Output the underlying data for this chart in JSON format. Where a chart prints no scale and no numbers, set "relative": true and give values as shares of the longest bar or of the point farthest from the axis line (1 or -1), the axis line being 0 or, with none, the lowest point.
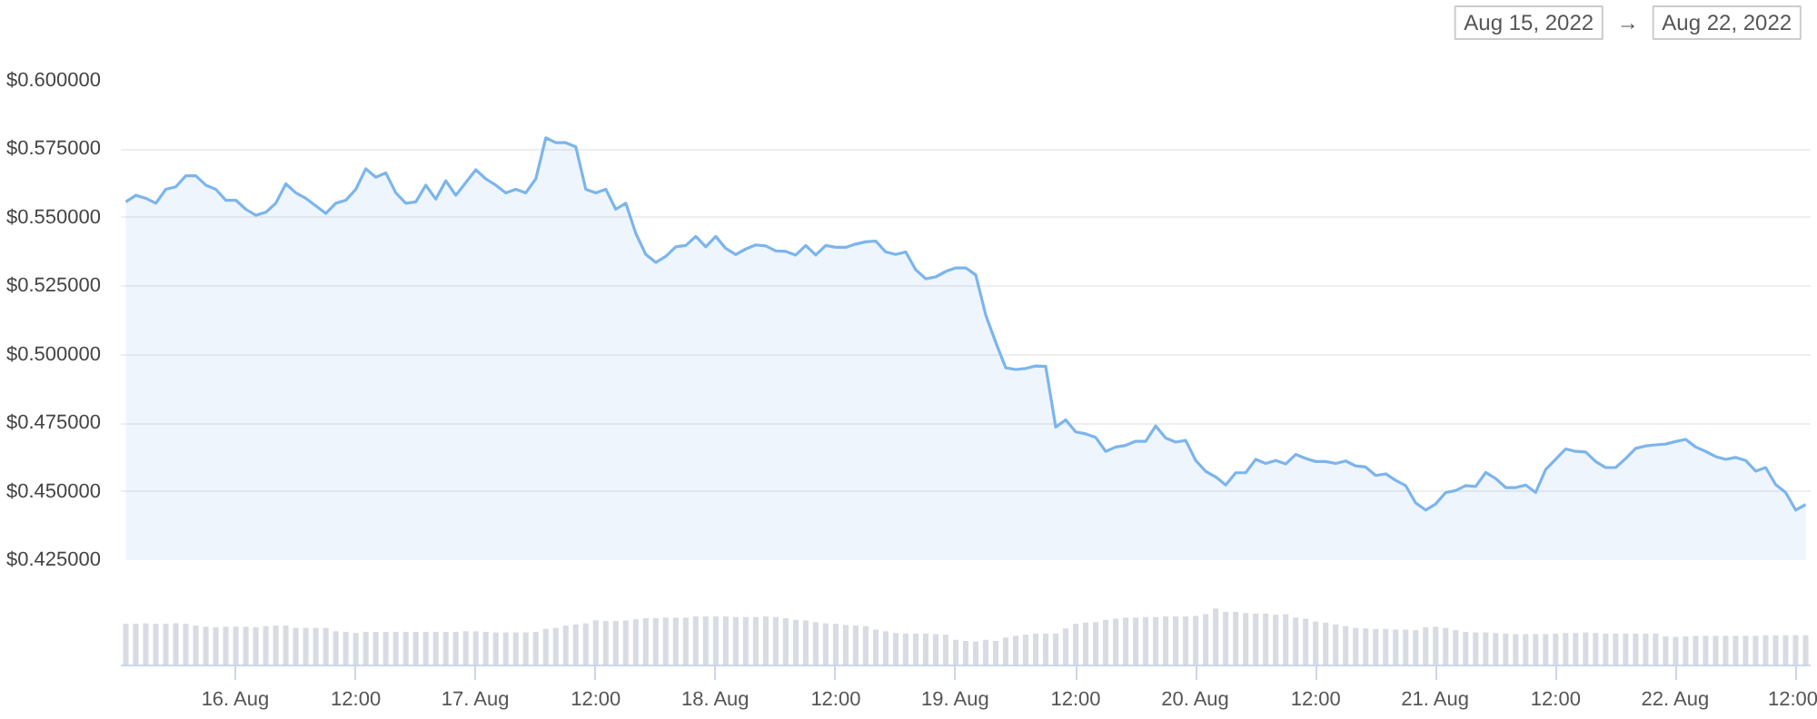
{
  "chart_data": [
    {
      "type": "area",
      "annotations": [
        "Aug 15, 2022",
        "→",
        "Aug 22, 2022"
      ],
      "tick_labels": "y",
      "grid": "y",
      "xlim": [
        "2022-08-15T12:30",
        "2022-08-22T13:30"
      ],
      "ylim": [
        0.425,
        0.6
      ],
      "yticks": [
        {
          "value": 0.425,
          "label": "$0.425000"
        },
        {
          "value": 0.45,
          "label": "$0.450000"
        },
        {
          "value": 0.475,
          "label": "$0.475000"
        },
        {
          "value": 0.5,
          "label": "$0.500000"
        },
        {
          "value": 0.525,
          "label": "$0.525000"
        },
        {
          "value": 0.55,
          "label": "$0.550000"
        },
        {
          "value": 0.575,
          "label": "$0.575000"
        },
        {
          "value": 0.6,
          "label": "$0.600000"
        }
      ],
      "series": [
        {
          "color": "#7cb5ec",
          "x": [
            "2022-08-15T13:00",
            "2022-08-15T14:00",
            "2022-08-15T15:00",
            "2022-08-15T16:00",
            "2022-08-15T17:00",
            "2022-08-15T18:00",
            "2022-08-15T19:00",
            "2022-08-15T20:00",
            "2022-08-15T21:00",
            "2022-08-15T22:00",
            "2022-08-15T23:00",
            "2022-08-16T00:00",
            "2022-08-16T01:00",
            "2022-08-16T02:00",
            "2022-08-16T03:00",
            "2022-08-16T04:00",
            "2022-08-16T05:00",
            "2022-08-16T06:00",
            "2022-08-16T07:00",
            "2022-08-16T09:00",
            "2022-08-16T10:00",
            "2022-08-16T11:00",
            "2022-08-16T12:00",
            "2022-08-16T13:00",
            "2022-08-16T14:00",
            "2022-08-16T15:00",
            "2022-08-16T16:00",
            "2022-08-16T17:00",
            "2022-08-16T18:00",
            "2022-08-16T19:00",
            "2022-08-16T20:00",
            "2022-08-16T21:00",
            "2022-08-16T22:00",
            "2022-08-17T00:00",
            "2022-08-17T01:00",
            "2022-08-17T02:00",
            "2022-08-17T03:00",
            "2022-08-17T04:00",
            "2022-08-17T05:00",
            "2022-08-17T06:00",
            "2022-08-17T07:00",
            "2022-08-17T08:00",
            "2022-08-17T09:00",
            "2022-08-17T10:00",
            "2022-08-17T11:00",
            "2022-08-17T12:00",
            "2022-08-17T13:00",
            "2022-08-17T14:00",
            "2022-08-17T15:00",
            "2022-08-17T16:00",
            "2022-08-17T17:00",
            "2022-08-17T18:00",
            "2022-08-17T19:00",
            "2022-08-17T20:00",
            "2022-08-17T21:00",
            "2022-08-17T22:00",
            "2022-08-17T23:00",
            "2022-08-18T00:00",
            "2022-08-18T01:00",
            "2022-08-18T02:00",
            "2022-08-18T03:00",
            "2022-08-18T04:00",
            "2022-08-18T05:00",
            "2022-08-18T06:00",
            "2022-08-18T07:00",
            "2022-08-18T08:00",
            "2022-08-18T09:00",
            "2022-08-18T10:00",
            "2022-08-18T11:00",
            "2022-08-18T12:00",
            "2022-08-18T13:00",
            "2022-08-18T14:00",
            "2022-08-18T15:00",
            "2022-08-18T16:00",
            "2022-08-18T17:00",
            "2022-08-18T18:00",
            "2022-08-18T19:00",
            "2022-08-18T20:00",
            "2022-08-18T21:00",
            "2022-08-18T22:00",
            "2022-08-18T23:00",
            "2022-08-19T00:00",
            "2022-08-19T01:00",
            "2022-08-19T02:00",
            "2022-08-19T03:00",
            "2022-08-19T04:00",
            "2022-08-19T05:00",
            "2022-08-19T06:00",
            "2022-08-19T07:00",
            "2022-08-19T08:00",
            "2022-08-19T09:00",
            "2022-08-19T10:00",
            "2022-08-19T11:00",
            "2022-08-19T12:00",
            "2022-08-19T13:00",
            "2022-08-19T14:00",
            "2022-08-19T15:00",
            "2022-08-19T16:00",
            "2022-08-19T17:00",
            "2022-08-19T18:00",
            "2022-08-19T19:00",
            "2022-08-19T20:00",
            "2022-08-19T21:00",
            "2022-08-19T22:00",
            "2022-08-19T23:00",
            "2022-08-20T00:00",
            "2022-08-20T01:00",
            "2022-08-20T02:00",
            "2022-08-20T03:00",
            "2022-08-20T04:00",
            "2022-08-20T05:00",
            "2022-08-20T06:00",
            "2022-08-20T07:00",
            "2022-08-20T08:00",
            "2022-08-20T09:00",
            "2022-08-20T10:00",
            "2022-08-20T11:00",
            "2022-08-20T12:00",
            "2022-08-20T13:00",
            "2022-08-20T14:00",
            "2022-08-20T15:00",
            "2022-08-20T16:00",
            "2022-08-20T17:00",
            "2022-08-20T18:00",
            "2022-08-20T19:00",
            "2022-08-20T20:00",
            "2022-08-20T21:00",
            "2022-08-20T22:00",
            "2022-08-20T23:00",
            "2022-08-21T00:00",
            "2022-08-21T01:00",
            "2022-08-21T02:00",
            "2022-08-21T03:00",
            "2022-08-21T04:00",
            "2022-08-21T05:00",
            "2022-08-21T06:00",
            "2022-08-21T07:00",
            "2022-08-21T08:00",
            "2022-08-21T09:00",
            "2022-08-21T10:00",
            "2022-08-21T11:00",
            "2022-08-21T12:00",
            "2022-08-21T13:00",
            "2022-08-21T14:00",
            "2022-08-21T15:00",
            "2022-08-21T16:00",
            "2022-08-21T17:00",
            "2022-08-21T18:00",
            "2022-08-21T19:00",
            "2022-08-21T20:00",
            "2022-08-21T21:00",
            "2022-08-21T22:00",
            "2022-08-21T23:00",
            "2022-08-22T00:00",
            "2022-08-22T01:00",
            "2022-08-22T02:00",
            "2022-08-22T03:00",
            "2022-08-22T04:00",
            "2022-08-22T05:00",
            "2022-08-22T06:00",
            "2022-08-22T07:00",
            "2022-08-22T08:00",
            "2022-08-22T09:00",
            "2022-08-22T10:00",
            "2022-08-22T11:00",
            "2022-08-22T12:00",
            "2022-08-22T13:00"
          ],
          "values": [
            0.5558,
            0.5582,
            0.5571,
            0.5553,
            0.5604,
            0.5613,
            0.5653,
            0.5653,
            0.5619,
            0.5604,
            0.5564,
            0.5564,
            0.5531,
            0.5509,
            0.552,
            0.5553,
            0.5624,
            0.5591,
            0.5571,
            0.5516,
            0.5553,
            0.5564,
            0.5604,
            0.5679,
            0.5648,
            0.5664,
            0.5591,
            0.5553,
            0.5558,
            0.5619,
            0.5568,
            0.5635,
            0.5582,
            0.5675,
            0.5642,
            0.5619,
            0.5591,
            0.5604,
            0.5591,
            0.5642,
            0.5792,
            0.5774,
            0.5774,
            0.5759,
            0.5604,
            0.5591,
            0.5604,
            0.5531,
            0.5553,
            0.5443,
            0.5366,
            0.5337,
            0.5359,
            0.5394,
            0.5399,
            0.5432,
            0.5394,
            0.5432,
            0.5388,
            0.5366,
            0.5386,
            0.5401,
            0.5397,
            0.5379,
            0.5377,
            0.5364,
            0.5399,
            0.5364,
            0.5399,
            0.5392,
            0.5392,
            0.5404,
            0.5412,
            0.5415,
            0.5375,
            0.5366,
            0.5375,
            0.531,
            0.5277,
            0.5284,
            0.5304,
            0.5317,
            0.5317,
            0.5291,
            0.5145,
            0.5045,
            0.4952,
            0.4946,
            0.495,
            0.4959,
            0.4957,
            0.4736,
            0.4762,
            0.4718,
            0.4711,
            0.4698,
            0.4647,
            0.4663,
            0.4669,
            0.4684,
            0.4684,
            0.474,
            0.4696,
            0.4681,
            0.4687,
            0.4614,
            0.4574,
            0.4554,
            0.4524,
            0.4569,
            0.4569,
            0.4618,
            0.4603,
            0.4614,
            0.4601,
            0.4636,
            0.4621,
            0.461,
            0.461,
            0.4603,
            0.4612,
            0.4594,
            0.459,
            0.4559,
            0.4565,
            0.4541,
            0.4522,
            0.4459,
            0.4433,
            0.4455,
            0.4497,
            0.4504,
            0.4522,
            0.4519,
            0.457,
            0.4548,
            0.4515,
            0.4515,
            0.4524,
            0.4497,
            0.4581,
            0.4618,
            0.4656,
            0.4647,
            0.4645,
            0.461,
            0.4588,
            0.4588,
            0.4621,
            0.4658,
            0.4667,
            0.4671,
            0.4674,
            0.4683,
            0.4691,
            0.4663,
            0.4647,
            0.4628,
            0.4618,
            0.4625,
            0.4614,
            0.4575,
            0.4588,
            0.4526,
            0.4497,
            0.4433,
            0.4453
          ]
        }
      ]
    },
    {
      "type": "bar",
      "relative": true,
      "tick_labels": "x",
      "grid": false,
      "color": "#d8dce2",
      "xlim": [
        "2022-08-15T12:30",
        "2022-08-22T13:30"
      ],
      "xticks": [
        {
          "value": "2022-08-16T00:00",
          "label": "16. Aug"
        },
        {
          "value": "2022-08-16T12:00",
          "label": "12:00"
        },
        {
          "value": "2022-08-17T00:00",
          "label": "17. Aug"
        },
        {
          "value": "2022-08-17T12:00",
          "label": "12:00"
        },
        {
          "value": "2022-08-18T00:00",
          "label": "18. Aug"
        },
        {
          "value": "2022-08-18T12:00",
          "label": "12:00"
        },
        {
          "value": "2022-08-19T00:00",
          "label": "19. Aug"
        },
        {
          "value": "2022-08-19T12:00",
          "label": "12:00"
        },
        {
          "value": "2022-08-20T00:00",
          "label": "20. Aug"
        },
        {
          "value": "2022-08-20T12:00",
          "label": "12:00"
        },
        {
          "value": "2022-08-21T00:00",
          "label": "21. Aug"
        },
        {
          "value": "2022-08-21T12:00",
          "label": "12:00"
        },
        {
          "value": "2022-08-22T00:00",
          "label": "22. Aug"
        },
        {
          "value": "2022-08-22T12:00",
          "label": "12:00"
        }
      ],
      "x": [
        "2022-08-15T13:00",
        "2022-08-15T14:00",
        "2022-08-15T15:00",
        "2022-08-15T16:00",
        "2022-08-15T17:00",
        "2022-08-15T18:00",
        "2022-08-15T19:00",
        "2022-08-15T20:00",
        "2022-08-15T21:00",
        "2022-08-15T22:00",
        "2022-08-15T23:00",
        "2022-08-16T00:00",
        "2022-08-16T01:00",
        "2022-08-16T02:00",
        "2022-08-16T03:00",
        "2022-08-16T04:00",
        "2022-08-16T05:00",
        "2022-08-16T06:00",
        "2022-08-16T07:00",
        "2022-08-16T08:00",
        "2022-08-16T09:00",
        "2022-08-16T10:00",
        "2022-08-16T11:00",
        "2022-08-16T12:00",
        "2022-08-16T13:00",
        "2022-08-16T14:00",
        "2022-08-16T15:00",
        "2022-08-16T16:00",
        "2022-08-16T17:00",
        "2022-08-16T18:00",
        "2022-08-16T19:00",
        "2022-08-16T20:00",
        "2022-08-16T21:00",
        "2022-08-16T22:00",
        "2022-08-16T23:00",
        "2022-08-17T00:00",
        "2022-08-17T01:00",
        "2022-08-17T02:00",
        "2022-08-17T03:00",
        "2022-08-17T04:00",
        "2022-08-17T05:00",
        "2022-08-17T06:00",
        "2022-08-17T07:00",
        "2022-08-17T08:00",
        "2022-08-17T09:00",
        "2022-08-17T10:00",
        "2022-08-17T11:00",
        "2022-08-17T12:00",
        "2022-08-17T13:00",
        "2022-08-17T14:00",
        "2022-08-17T15:00",
        "2022-08-17T16:00",
        "2022-08-17T17:00",
        "2022-08-17T18:00",
        "2022-08-17T19:00",
        "2022-08-17T20:00",
        "2022-08-17T21:00",
        "2022-08-17T22:00",
        "2022-08-17T23:00",
        "2022-08-18T00:00",
        "2022-08-18T01:00",
        "2022-08-18T02:00",
        "2022-08-18T03:00",
        "2022-08-18T04:00",
        "2022-08-18T05:00",
        "2022-08-18T06:00",
        "2022-08-18T07:00",
        "2022-08-18T08:00",
        "2022-08-18T09:00",
        "2022-08-18T10:00",
        "2022-08-18T11:00",
        "2022-08-18T12:00",
        "2022-08-18T13:00",
        "2022-08-18T14:00",
        "2022-08-18T15:00",
        "2022-08-18T16:00",
        "2022-08-18T17:00",
        "2022-08-18T18:00",
        "2022-08-18T19:00",
        "2022-08-18T20:00",
        "2022-08-18T21:00",
        "2022-08-18T22:00",
        "2022-08-18T23:00",
        "2022-08-19T00:00",
        "2022-08-19T01:00",
        "2022-08-19T02:00",
        "2022-08-19T03:00",
        "2022-08-19T04:00",
        "2022-08-19T05:00",
        "2022-08-19T06:00",
        "2022-08-19T07:00",
        "2022-08-19T08:00",
        "2022-08-19T09:00",
        "2022-08-19T10:00",
        "2022-08-19T11:00",
        "2022-08-19T12:00",
        "2022-08-19T13:00",
        "2022-08-19T14:00",
        "2022-08-19T15:00",
        "2022-08-19T16:00",
        "2022-08-19T17:00",
        "2022-08-19T18:00",
        "2022-08-19T19:00",
        "2022-08-19T20:00",
        "2022-08-19T21:00",
        "2022-08-19T22:00",
        "2022-08-19T23:00",
        "2022-08-20T00:00",
        "2022-08-20T01:00",
        "2022-08-20T02:00",
        "2022-08-20T03:00",
        "2022-08-20T04:00",
        "2022-08-20T05:00",
        "2022-08-20T06:00",
        "2022-08-20T07:00",
        "2022-08-20T08:00",
        "2022-08-20T09:00",
        "2022-08-20T10:00",
        "2022-08-20T11:00",
        "2022-08-20T12:00",
        "2022-08-20T13:00",
        "2022-08-20T14:00",
        "2022-08-20T15:00",
        "2022-08-20T16:00",
        "2022-08-20T17:00",
        "2022-08-20T18:00",
        "2022-08-20T19:00",
        "2022-08-20T20:00",
        "2022-08-20T21:00",
        "2022-08-20T22:00",
        "2022-08-20T23:00",
        "2022-08-21T00:00",
        "2022-08-21T01:00",
        "2022-08-21T02:00",
        "2022-08-21T03:00",
        "2022-08-21T04:00",
        "2022-08-21T05:00",
        "2022-08-21T06:00",
        "2022-08-21T07:00",
        "2022-08-21T08:00",
        "2022-08-21T09:00",
        "2022-08-21T10:00",
        "2022-08-21T11:00",
        "2022-08-21T12:00",
        "2022-08-21T13:00",
        "2022-08-21T14:00",
        "2022-08-21T15:00",
        "2022-08-21T16:00",
        "2022-08-21T17:00",
        "2022-08-21T18:00",
        "2022-08-21T19:00",
        "2022-08-21T20:00",
        "2022-08-21T21:00",
        "2022-08-21T22:00",
        "2022-08-21T23:00",
        "2022-08-22T00:00",
        "2022-08-22T01:00",
        "2022-08-22T02:00",
        "2022-08-22T03:00",
        "2022-08-22T04:00",
        "2022-08-22T05:00",
        "2022-08-22T06:00",
        "2022-08-22T07:00",
        "2022-08-22T08:00",
        "2022-08-22T09:00",
        "2022-08-22T10:00",
        "2022-08-22T11:00",
        "2022-08-22T12:00",
        "2022-08-22T13:00"
      ],
      "values": [
        0.73,
        0.73,
        0.74,
        0.73,
        0.73,
        0.74,
        0.73,
        0.7,
        0.68,
        0.67,
        0.68,
        0.68,
        0.68,
        0.67,
        0.69,
        0.7,
        0.7,
        0.66,
        0.66,
        0.66,
        0.66,
        0.6,
        0.59,
        0.57,
        0.59,
        0.59,
        0.59,
        0.59,
        0.59,
        0.59,
        0.59,
        0.59,
        0.59,
        0.59,
        0.6,
        0.6,
        0.59,
        0.58,
        0.58,
        0.58,
        0.58,
        0.59,
        0.64,
        0.66,
        0.7,
        0.72,
        0.74,
        0.79,
        0.78,
        0.78,
        0.79,
        0.81,
        0.83,
        0.83,
        0.84,
        0.84,
        0.84,
        0.86,
        0.86,
        0.86,
        0.86,
        0.85,
        0.85,
        0.85,
        0.86,
        0.85,
        0.83,
        0.8,
        0.79,
        0.76,
        0.74,
        0.73,
        0.71,
        0.7,
        0.69,
        0.63,
        0.6,
        0.57,
        0.56,
        0.56,
        0.56,
        0.55,
        0.54,
        0.45,
        0.43,
        0.42,
        0.45,
        0.43,
        0.49,
        0.52,
        0.54,
        0.56,
        0.56,
        0.56,
        0.65,
        0.73,
        0.75,
        0.76,
        0.8,
        0.82,
        0.84,
        0.84,
        0.85,
        0.85,
        0.86,
        0.86,
        0.86,
        0.87,
        0.9,
        1.0,
        0.94,
        0.94,
        0.92,
        0.91,
        0.91,
        0.89,
        0.9,
        0.84,
        0.82,
        0.77,
        0.75,
        0.72,
        0.69,
        0.66,
        0.65,
        0.64,
        0.64,
        0.63,
        0.63,
        0.62,
        0.67,
        0.68,
        0.66,
        0.62,
        0.59,
        0.58,
        0.58,
        0.57,
        0.56,
        0.55,
        0.55,
        0.55,
        0.55,
        0.56,
        0.57,
        0.57,
        0.58,
        0.57,
        0.56,
        0.56,
        0.56,
        0.56,
        0.56,
        0.56,
        0.51,
        0.5,
        0.51,
        0.52,
        0.52,
        0.52,
        0.52,
        0.52,
        0.52,
        0.52,
        0.53,
        0.53,
        0.53,
        0.53,
        0.53
      ]
    }
  ]
}
